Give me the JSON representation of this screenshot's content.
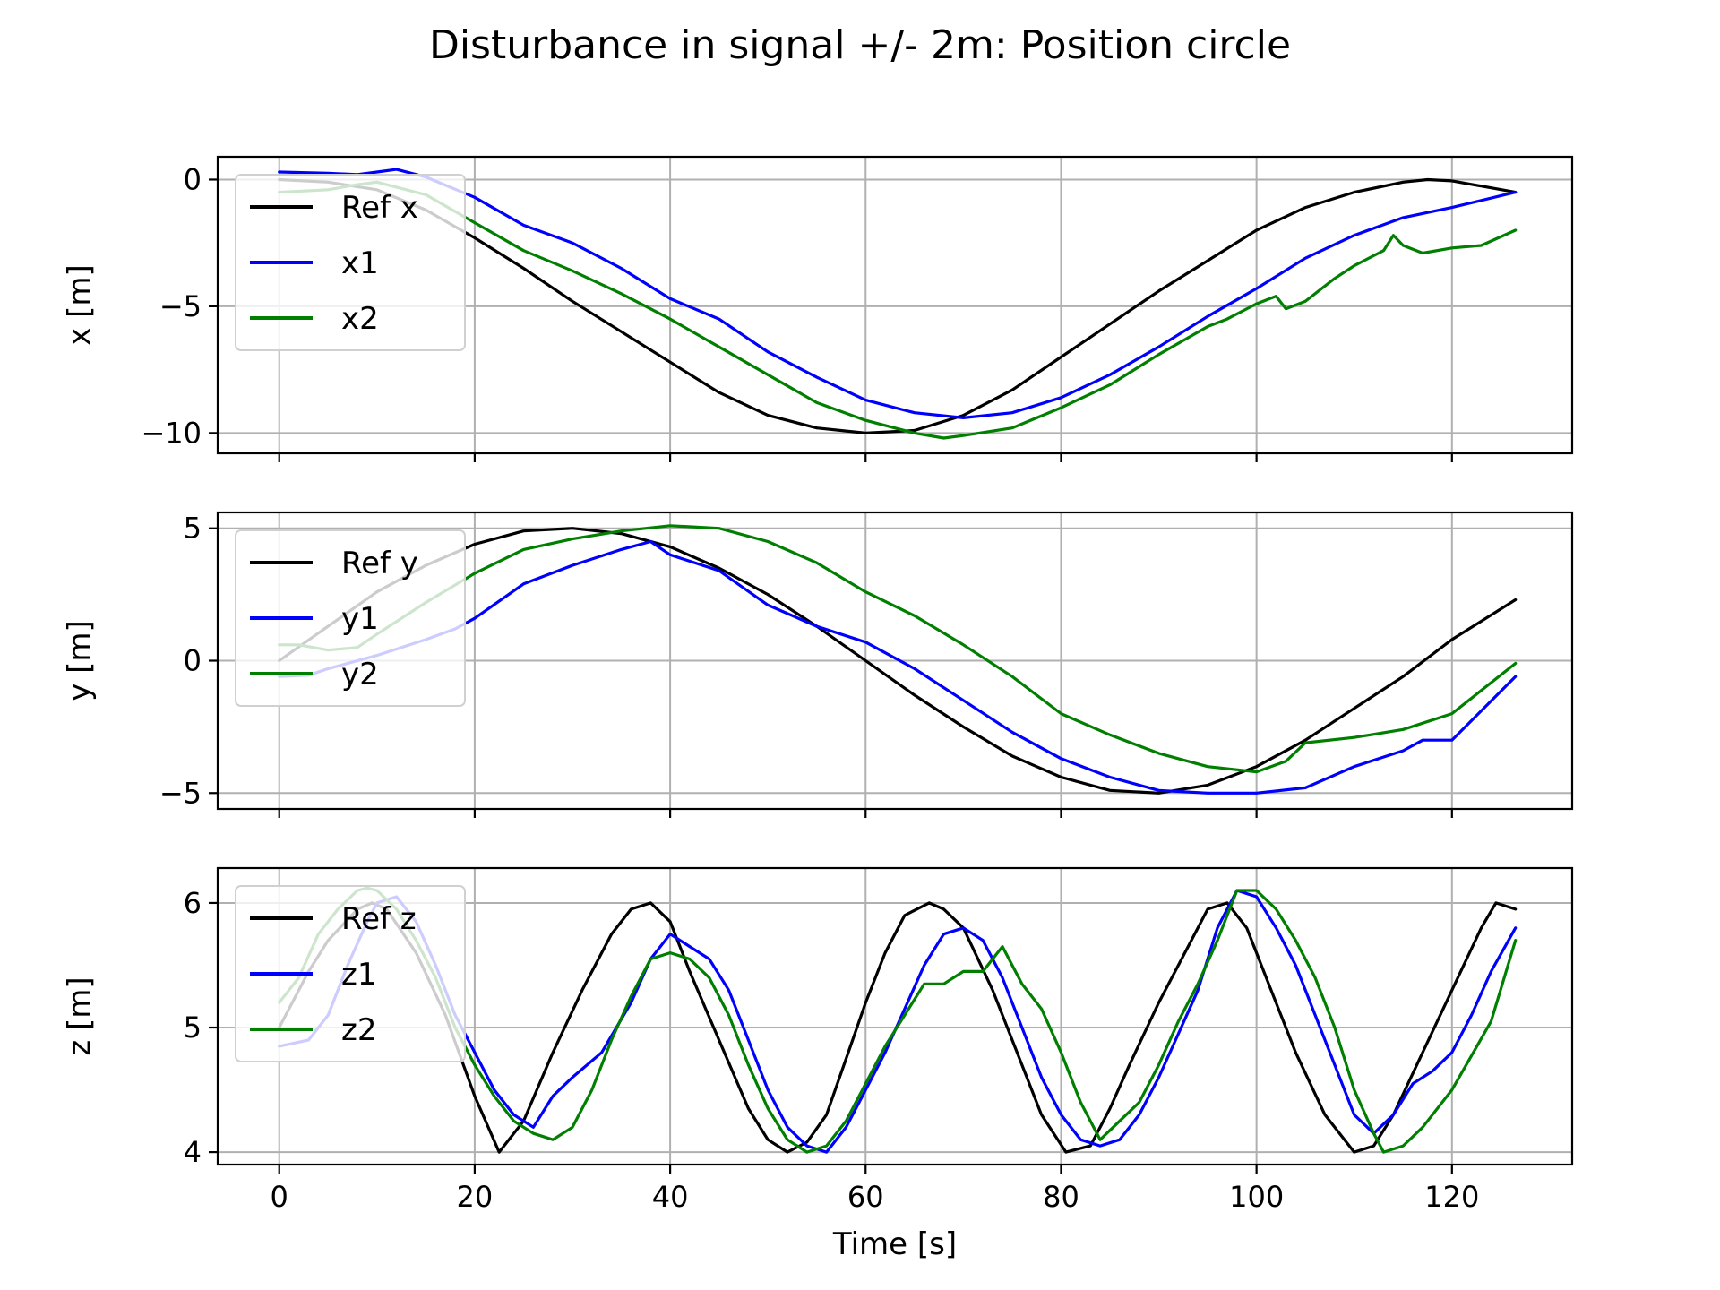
{
  "figure": {
    "title": "Disturbance in signal +/- 2m: Position circle"
  },
  "chart_data": [
    {
      "type": "line",
      "xlabel": "",
      "ylabel": "x [m]",
      "xlim": [
        -6.3,
        132.3
      ],
      "ylim": [
        -10.8,
        0.9
      ],
      "xticks": [
        0,
        20,
        40,
        60,
        80,
        100,
        120
      ],
      "xtick_labels": [
        "",
        "",
        "",
        "",
        "",
        "",
        ""
      ],
      "yticks": [
        0,
        -5,
        -10
      ],
      "ytick_labels": [
        "0",
        "−5",
        "−10"
      ],
      "grid": true,
      "legend": "upper left",
      "series": [
        {
          "name": "Ref x",
          "color": "#000000",
          "x": [
            0,
            5,
            10,
            15,
            20,
            25,
            30,
            35,
            40,
            45,
            50,
            55,
            60,
            65,
            70,
            75,
            80,
            85,
            90,
            95,
            100,
            105,
            110,
            115,
            117.5,
            120,
            126.5
          ],
          "y": [
            0,
            -0.1,
            -0.4,
            -1.2,
            -2.3,
            -3.5,
            -4.8,
            -6.0,
            -7.2,
            -8.4,
            -9.3,
            -9.8,
            -10.0,
            -9.9,
            -9.3,
            -8.3,
            -7.0,
            -5.7,
            -4.4,
            -3.2,
            -2.0,
            -1.1,
            -0.5,
            -0.1,
            0,
            -0.05,
            -0.5
          ]
        },
        {
          "name": "x1",
          "color": "#0000ff",
          "x": [
            0,
            5,
            8,
            10,
            12,
            15,
            20,
            25,
            30,
            35,
            40,
            45,
            50,
            55,
            60,
            65,
            70,
            75,
            80,
            85,
            90,
            95,
            100,
            105,
            110,
            115,
            120,
            126.5
          ],
          "y": [
            0.3,
            0.25,
            0.2,
            0.3,
            0.4,
            0.1,
            -0.7,
            -1.8,
            -2.5,
            -3.5,
            -4.7,
            -5.5,
            -6.8,
            -7.8,
            -8.7,
            -9.2,
            -9.4,
            -9.2,
            -8.6,
            -7.7,
            -6.6,
            -5.4,
            -4.3,
            -3.1,
            -2.2,
            -1.5,
            -1.1,
            -0.5
          ]
        },
        {
          "name": "x2",
          "color": "#007f00",
          "x": [
            0,
            5,
            8,
            10,
            15,
            20,
            25,
            30,
            35,
            40,
            45,
            50,
            55,
            60,
            65,
            68,
            70,
            75,
            80,
            85,
            90,
            95,
            97,
            100,
            102,
            103,
            105,
            108,
            110,
            113,
            114,
            115,
            117,
            120,
            123,
            126.5
          ],
          "y": [
            -0.5,
            -0.4,
            -0.2,
            -0.1,
            -0.6,
            -1.7,
            -2.8,
            -3.6,
            -4.5,
            -5.5,
            -6.6,
            -7.7,
            -8.8,
            -9.5,
            -10.0,
            -10.2,
            -10.1,
            -9.8,
            -9.0,
            -8.1,
            -6.9,
            -5.8,
            -5.5,
            -4.9,
            -4.6,
            -5.1,
            -4.8,
            -3.9,
            -3.4,
            -2.8,
            -2.2,
            -2.6,
            -2.9,
            -2.7,
            -2.6,
            -2.0
          ]
        }
      ]
    },
    {
      "type": "line",
      "xlabel": "",
      "ylabel": "y [m]",
      "xlim": [
        -6.3,
        132.3
      ],
      "ylim": [
        -5.6,
        5.6
      ],
      "xticks": [
        0,
        20,
        40,
        60,
        80,
        100,
        120
      ],
      "xtick_labels": [
        "",
        "",
        "",
        "",
        "",
        "",
        ""
      ],
      "yticks": [
        5,
        0,
        -5
      ],
      "ytick_labels": [
        "5",
        "0",
        "−5"
      ],
      "grid": true,
      "legend": "upper left",
      "series": [
        {
          "name": "Ref y",
          "color": "#000000",
          "x": [
            0,
            5,
            10,
            15,
            20,
            25,
            30,
            35,
            40,
            45,
            50,
            55,
            60,
            65,
            70,
            75,
            80,
            85,
            90,
            95,
            100,
            105,
            110,
            115,
            120,
            126.5
          ],
          "y": [
            0,
            1.3,
            2.6,
            3.6,
            4.4,
            4.9,
            5.0,
            4.8,
            4.3,
            3.5,
            2.5,
            1.3,
            0,
            -1.3,
            -2.5,
            -3.6,
            -4.4,
            -4.9,
            -5.0,
            -4.7,
            -4.0,
            -3.0,
            -1.8,
            -0.6,
            0.8,
            2.3
          ]
        },
        {
          "name": "y1",
          "color": "#0000ff",
          "x": [
            0,
            3,
            5,
            10,
            15,
            18,
            20,
            25,
            30,
            35,
            38,
            40,
            45,
            50,
            55,
            60,
            65,
            70,
            75,
            80,
            85,
            90,
            95,
            100,
            105,
            110,
            115,
            117,
            120,
            126.5
          ],
          "y": [
            -0.6,
            -0.55,
            -0.3,
            0.2,
            0.8,
            1.2,
            1.6,
            2.9,
            3.6,
            4.2,
            4.5,
            4.0,
            3.4,
            2.1,
            1.3,
            0.7,
            -0.3,
            -1.5,
            -2.7,
            -3.7,
            -4.4,
            -4.9,
            -5.0,
            -5.0,
            -4.8,
            -4.0,
            -3.4,
            -3.0,
            -3.0,
            -0.6
          ]
        },
        {
          "name": "y2",
          "color": "#007f00",
          "x": [
            0,
            2,
            5,
            8,
            10,
            15,
            20,
            25,
            30,
            35,
            40,
            45,
            50,
            55,
            60,
            65,
            70,
            75,
            80,
            85,
            90,
            95,
            100,
            103,
            105,
            110,
            115,
            120,
            126.5
          ],
          "y": [
            0.6,
            0.6,
            0.4,
            0.5,
            1.0,
            2.2,
            3.3,
            4.2,
            4.6,
            4.9,
            5.1,
            5.0,
            4.5,
            3.7,
            2.6,
            1.7,
            0.6,
            -0.6,
            -2.0,
            -2.8,
            -3.5,
            -4.0,
            -4.2,
            -3.8,
            -3.1,
            -2.9,
            -2.6,
            -2.0,
            -0.1
          ]
        }
      ]
    },
    {
      "type": "line",
      "xlabel": "Time [s]",
      "ylabel": "z [m]",
      "xlim": [
        -6.3,
        132.3
      ],
      "ylim": [
        3.9,
        6.28
      ],
      "xticks": [
        0,
        20,
        40,
        60,
        80,
        100,
        120
      ],
      "xtick_labels": [
        "0",
        "20",
        "40",
        "60",
        "80",
        "100",
        "120"
      ],
      "yticks": [
        6,
        5,
        4
      ],
      "ytick_labels": [
        "6",
        "5",
        "4"
      ],
      "grid": true,
      "legend": "upper left",
      "series": [
        {
          "name": "Ref z",
          "color": "#000000",
          "x": [
            0,
            3,
            5,
            8,
            9.5,
            11,
            14,
            17,
            20,
            22.5,
            25,
            28,
            31,
            34,
            36,
            38,
            40,
            42,
            45,
            48,
            50,
            52,
            54,
            56,
            58,
            60,
            62,
            64,
            66.5,
            68,
            70,
            73,
            76,
            78,
            80.5,
            83,
            85,
            87,
            90,
            93,
            95,
            97,
            99,
            101,
            104,
            107,
            110,
            112,
            114,
            117,
            120,
            123,
            124.5,
            126.5
          ],
          "y": [
            5.0,
            5.45,
            5.7,
            5.95,
            6.0,
            5.95,
            5.6,
            5.1,
            4.45,
            4.0,
            4.25,
            4.8,
            5.3,
            5.75,
            5.95,
            6.0,
            5.85,
            5.45,
            4.9,
            4.35,
            4.1,
            4.0,
            4.08,
            4.3,
            4.75,
            5.2,
            5.6,
            5.9,
            6.0,
            5.95,
            5.8,
            5.3,
            4.7,
            4.3,
            4.0,
            4.05,
            4.35,
            4.7,
            5.2,
            5.65,
            5.95,
            6.0,
            5.8,
            5.4,
            4.8,
            4.3,
            4.0,
            4.05,
            4.3,
            4.8,
            5.3,
            5.8,
            6.0,
            5.95
          ]
        },
        {
          "name": "z1",
          "color": "#0000ff",
          "x": [
            0,
            3,
            5,
            7,
            9,
            10,
            12,
            14,
            16,
            18,
            20,
            22,
            24,
            26,
            28,
            30,
            33,
            36,
            38,
            40,
            42,
            44,
            46,
            48,
            50,
            52,
            54,
            56,
            58,
            60,
            62,
            64,
            66,
            68,
            70,
            72,
            74,
            76,
            78,
            80,
            82,
            84,
            86,
            88,
            90,
            92,
            94,
            96,
            98,
            100,
            102,
            104,
            106,
            108,
            110,
            112,
            114,
            116,
            118,
            120,
            122,
            124,
            126.5
          ],
          "y": [
            4.85,
            4.9,
            5.1,
            5.5,
            5.85,
            6.0,
            6.05,
            5.85,
            5.5,
            5.1,
            4.8,
            4.5,
            4.3,
            4.2,
            4.45,
            4.6,
            4.8,
            5.2,
            5.55,
            5.75,
            5.65,
            5.55,
            5.3,
            4.9,
            4.5,
            4.2,
            4.05,
            4.0,
            4.2,
            4.5,
            4.8,
            5.15,
            5.5,
            5.75,
            5.8,
            5.7,
            5.4,
            5.0,
            4.6,
            4.3,
            4.1,
            4.05,
            4.1,
            4.3,
            4.6,
            4.95,
            5.3,
            5.8,
            6.1,
            6.05,
            5.8,
            5.5,
            5.1,
            4.7,
            4.3,
            4.15,
            4.3,
            4.55,
            4.65,
            4.8,
            5.1,
            5.45,
            5.8
          ]
        },
        {
          "name": "z2",
          "color": "#007f00",
          "x": [
            0,
            2,
            4,
            6,
            8,
            9,
            10,
            12,
            14,
            16,
            18,
            20,
            22,
            24,
            26,
            28,
            30,
            32,
            34,
            36,
            38,
            40,
            42,
            44,
            46,
            48,
            50,
            52,
            54,
            56,
            58,
            60,
            62,
            64,
            66,
            68,
            70,
            72,
            74,
            76,
            78,
            80,
            82,
            84,
            86,
            88,
            90,
            92,
            94,
            96,
            98,
            100,
            102,
            104,
            106,
            108,
            110,
            112,
            113,
            115,
            117,
            120,
            124,
            126.5
          ],
          "y": [
            5.2,
            5.4,
            5.75,
            5.95,
            6.1,
            6.12,
            6.1,
            5.95,
            5.7,
            5.4,
            5.0,
            4.7,
            4.45,
            4.25,
            4.15,
            4.1,
            4.2,
            4.5,
            4.9,
            5.25,
            5.55,
            5.6,
            5.55,
            5.4,
            5.1,
            4.7,
            4.35,
            4.1,
            4.0,
            4.05,
            4.25,
            4.55,
            4.85,
            5.1,
            5.35,
            5.35,
            5.45,
            5.45,
            5.65,
            5.35,
            5.15,
            4.8,
            4.4,
            4.1,
            4.25,
            4.4,
            4.7,
            5.05,
            5.35,
            5.7,
            6.1,
            6.1,
            5.95,
            5.7,
            5.4,
            5.0,
            4.5,
            4.15,
            4.0,
            4.05,
            4.2,
            4.5,
            5.05,
            5.7
          ]
        }
      ]
    }
  ]
}
